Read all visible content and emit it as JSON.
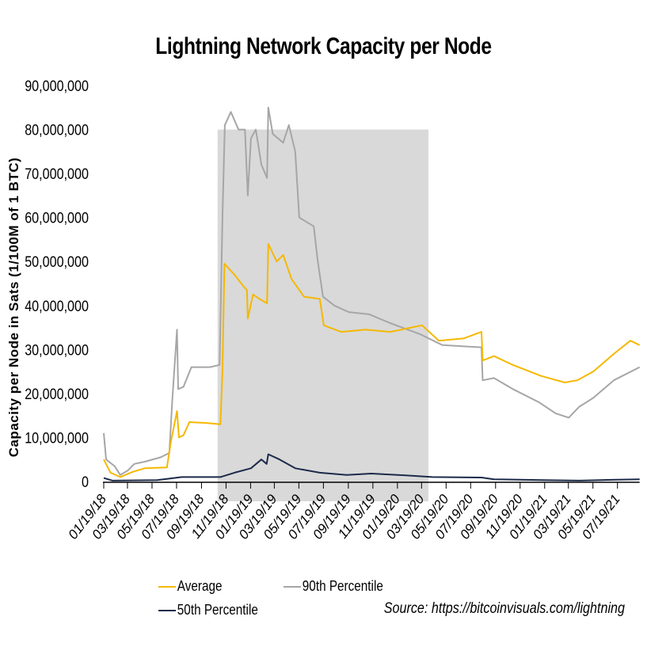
{
  "chart_data": {
    "type": "line",
    "title": "Lightning Network Capacity per Node",
    "ylabel": "Capacity per Node in Sats (1/100M of 1 BTC)",
    "xlabel": "",
    "ylim": [
      0,
      90000000
    ],
    "yticks": [
      0,
      10000000,
      20000000,
      30000000,
      40000000,
      50000000,
      60000000,
      70000000,
      80000000,
      90000000
    ],
    "ytick_labels": [
      "0",
      "10,000,000",
      "20,000,000",
      "30,000,000",
      "40,000,000",
      "50,000,000",
      "60,000,000",
      "70,000,000",
      "80,000,000",
      "90,000,000"
    ],
    "xlim": [
      "2018-01-19",
      "2021-09-12"
    ],
    "xtick_labels": [
      "01/19/18",
      "03/19/18",
      "05/19/18",
      "07/19/18",
      "09/19/18",
      "11/19/18",
      "01/19/19",
      "03/19/19",
      "05/19/19",
      "07/19/19",
      "09/19/19",
      "11/19/19",
      "01/19/20",
      "03/19/20",
      "05/19/20",
      "07/19/20",
      "09/19/20",
      "11/19/20",
      "01/19/21",
      "03/19/21",
      "05/19/21",
      "07/19/21"
    ],
    "grid": false,
    "legend_placement": "bottom",
    "shaded_band": {
      "x_start": "2018-10-29",
      "x_end": "2020-04-05",
      "y_top": 80000000,
      "color": "#d9d9d9"
    },
    "series": [
      {
        "name": "Average",
        "color": "#f5b800",
        "points": [
          [
            "2018-01-19",
            5000000
          ],
          [
            "2018-02-05",
            2000000
          ],
          [
            "2018-03-01",
            1000000
          ],
          [
            "2018-04-01",
            2200000
          ],
          [
            "2018-05-01",
            3000000
          ],
          [
            "2018-06-25",
            3200000
          ],
          [
            "2018-07-05",
            9000000
          ],
          [
            "2018-07-20",
            16000000
          ],
          [
            "2018-07-25",
            10000000
          ],
          [
            "2018-08-05",
            10500000
          ],
          [
            "2018-08-20",
            13500000
          ],
          [
            "2018-10-01",
            13300000
          ],
          [
            "2018-11-05",
            13000000
          ],
          [
            "2018-11-10",
            25000000
          ],
          [
            "2018-11-15",
            49500000
          ],
          [
            "2018-12-10",
            47000000
          ],
          [
            "2018-12-31",
            44500000
          ],
          [
            "2019-01-10",
            43500000
          ],
          [
            "2019-01-12",
            37000000
          ],
          [
            "2019-01-25",
            42500000
          ],
          [
            "2019-02-10",
            41500000
          ],
          [
            "2019-03-01",
            40500000
          ],
          [
            "2019-03-04",
            54000000
          ],
          [
            "2019-03-25",
            50000000
          ],
          [
            "2019-04-10",
            51500000
          ],
          [
            "2019-05-01",
            46000000
          ],
          [
            "2019-06-01",
            42000000
          ],
          [
            "2019-07-10",
            41500000
          ],
          [
            "2019-07-20",
            35500000
          ],
          [
            "2019-09-01",
            34000000
          ],
          [
            "2019-11-01",
            34500000
          ],
          [
            "2020-01-01",
            34000000
          ],
          [
            "2020-03-20",
            35500000
          ],
          [
            "2020-05-01",
            32000000
          ],
          [
            "2020-07-01",
            32500000
          ],
          [
            "2020-08-15",
            34000000
          ],
          [
            "2020-08-18",
            27500000
          ],
          [
            "2020-09-15",
            28500000
          ],
          [
            "2020-11-01",
            26500000
          ],
          [
            "2021-01-10",
            24000000
          ],
          [
            "2021-03-10",
            22500000
          ],
          [
            "2021-04-10",
            23000000
          ],
          [
            "2021-05-20",
            25000000
          ],
          [
            "2021-07-10",
            29000000
          ],
          [
            "2021-08-20",
            32000000
          ],
          [
            "2021-09-12",
            31000000
          ]
        ]
      },
      {
        "name": "90th Percentile",
        "color": "#a6a6a6",
        "points": [
          [
            "2018-01-19",
            11000000
          ],
          [
            "2018-01-25",
            5000000
          ],
          [
            "2018-02-15",
            3500000
          ],
          [
            "2018-03-01",
            1500000
          ],
          [
            "2018-03-20",
            2500000
          ],
          [
            "2018-04-05",
            4000000
          ],
          [
            "2018-05-01",
            4500000
          ],
          [
            "2018-06-10",
            5500000
          ],
          [
            "2018-07-01",
            6500000
          ],
          [
            "2018-07-08",
            18000000
          ],
          [
            "2018-07-20",
            34500000
          ],
          [
            "2018-07-23",
            21000000
          ],
          [
            "2018-08-05",
            21500000
          ],
          [
            "2018-08-25",
            26000000
          ],
          [
            "2018-10-10",
            26000000
          ],
          [
            "2018-11-03",
            26500000
          ],
          [
            "2018-11-10",
            60000000
          ],
          [
            "2018-11-16",
            81000000
          ],
          [
            "2018-12-01",
            84000000
          ],
          [
            "2018-12-20",
            80000000
          ],
          [
            "2019-01-05",
            80000000
          ],
          [
            "2019-01-12",
            65000000
          ],
          [
            "2019-01-20",
            78000000
          ],
          [
            "2019-02-01",
            80000000
          ],
          [
            "2019-02-15",
            72000000
          ],
          [
            "2019-03-01",
            69000000
          ],
          [
            "2019-03-04",
            85000000
          ],
          [
            "2019-03-15",
            79000000
          ],
          [
            "2019-04-10",
            77000000
          ],
          [
            "2019-04-24",
            81000000
          ],
          [
            "2019-05-10",
            75000000
          ],
          [
            "2019-05-20",
            60000000
          ],
          [
            "2019-06-25",
            58000000
          ],
          [
            "2019-07-05",
            50000000
          ],
          [
            "2019-07-18",
            42000000
          ],
          [
            "2019-08-15",
            40000000
          ],
          [
            "2019-09-20",
            38500000
          ],
          [
            "2019-11-10",
            38000000
          ],
          [
            "2020-01-01",
            36000000
          ],
          [
            "2020-03-15",
            33500000
          ],
          [
            "2020-05-10",
            31000000
          ],
          [
            "2020-08-15",
            30500000
          ],
          [
            "2020-08-18",
            23000000
          ],
          [
            "2020-09-15",
            23500000
          ],
          [
            "2020-11-01",
            21000000
          ],
          [
            "2021-01-05",
            18000000
          ],
          [
            "2021-02-15",
            15500000
          ],
          [
            "2021-03-20",
            14500000
          ],
          [
            "2021-04-15",
            17000000
          ],
          [
            "2021-05-20",
            19000000
          ],
          [
            "2021-07-10",
            23000000
          ],
          [
            "2021-09-12",
            26000000
          ]
        ]
      },
      {
        "name": "50th Percentile",
        "color": "#1c2a4a",
        "points": [
          [
            "2018-01-19",
            800000
          ],
          [
            "2018-02-10",
            200000
          ],
          [
            "2018-06-01",
            300000
          ],
          [
            "2018-08-01",
            1000000
          ],
          [
            "2018-11-05",
            1000000
          ],
          [
            "2018-12-10",
            2000000
          ],
          [
            "2019-01-20",
            3000000
          ],
          [
            "2019-02-15",
            5000000
          ],
          [
            "2019-02-28",
            4000000
          ],
          [
            "2019-03-04",
            6200000
          ],
          [
            "2019-04-01",
            5000000
          ],
          [
            "2019-05-10",
            3000000
          ],
          [
            "2019-07-10",
            2000000
          ],
          [
            "2019-09-15",
            1500000
          ],
          [
            "2019-11-15",
            1800000
          ],
          [
            "2020-01-20",
            1500000
          ],
          [
            "2020-04-15",
            1000000
          ],
          [
            "2020-08-15",
            900000
          ],
          [
            "2020-09-15",
            500000
          ],
          [
            "2021-01-15",
            300000
          ],
          [
            "2021-04-15",
            200000
          ],
          [
            "2021-07-15",
            400000
          ],
          [
            "2021-09-12",
            500000
          ]
        ]
      }
    ]
  },
  "legend": {
    "average": "Average",
    "p90": "90th Percentile",
    "p50": "50th Percentile"
  },
  "source": "Source: https://bitcoinvisuals.com/lightning"
}
